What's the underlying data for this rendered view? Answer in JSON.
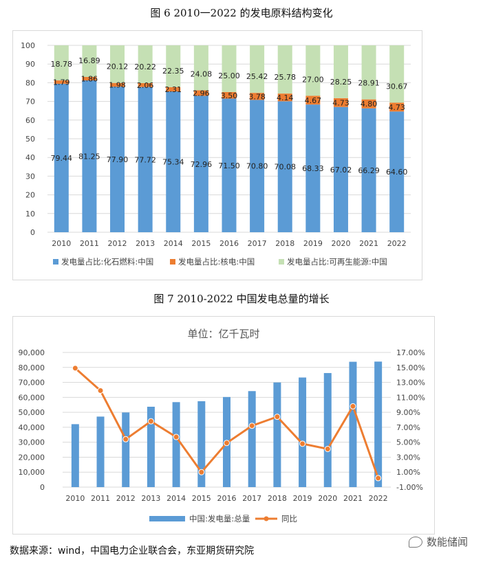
{
  "figure1": {
    "caption": "图 6 2010一2022 的发电原料结构变化"
  },
  "figure2": {
    "caption": "图 7  2010-2022 中国发电总量的增长"
  },
  "source": "数据来源：wind，中国电力企业联合会，东亚期货研究院",
  "watermark": "数能储闻",
  "colors": {
    "fossil": "#5b9bd5",
    "nuclear": "#ed7d31",
    "renewable": "#c5e0b4",
    "total_bar": "#5b9bd5",
    "yoy_line": "#ed7d31"
  },
  "chart_data": [
    {
      "type": "bar",
      "stacked": true,
      "categories": [
        "2010",
        "2011",
        "2012",
        "2013",
        "2014",
        "2015",
        "2016",
        "2017",
        "2018",
        "2019",
        "2020",
        "2021",
        "2022"
      ],
      "series": [
        {
          "name": "发电量占比:化石燃料:中国",
          "values": [
            79.44,
            81.25,
            77.9,
            77.72,
            75.34,
            72.96,
            71.5,
            70.8,
            70.08,
            68.33,
            67.02,
            66.29,
            64.6
          ]
        },
        {
          "name": "发电量占比:核电:中国",
          "values": [
            1.79,
            1.86,
            1.98,
            2.06,
            2.31,
            2.96,
            3.5,
            3.78,
            4.14,
            4.67,
            4.73,
            4.8,
            4.73
          ]
        },
        {
          "name": "发电量占比:可再生能源:中国",
          "values": [
            18.78,
            16.89,
            20.12,
            20.22,
            22.35,
            24.08,
            25.0,
            25.42,
            25.78,
            27.0,
            28.25,
            28.91,
            30.67
          ]
        }
      ],
      "labels": {
        "fossil": [
          "79.44",
          "81.25",
          "77.90",
          "77.72",
          "75.34",
          "72.96",
          "71.50",
          "70.80",
          "70.08",
          "68.33",
          "67.02",
          "66.29",
          "64.60"
        ],
        "nuclear": [
          "1.79",
          "1.86",
          "1.98",
          "2.06",
          "2.31",
          "2.96",
          "3.50",
          "3.78",
          "4.14",
          "4.67",
          "4.73",
          "4.80",
          "4.73"
        ],
        "renewable": [
          "18.78",
          "16.89",
          "20.12",
          "20.22",
          "22.35",
          "24.08",
          "25.00",
          "25.42",
          "25.78",
          "27.00",
          "28.25",
          "28.91",
          "30.67"
        ]
      },
      "ylim": [
        0,
        100
      ],
      "yticks": [
        "0",
        "10",
        "20",
        "30",
        "40",
        "50",
        "60",
        "70",
        "80",
        "90",
        "100"
      ],
      "grid": true,
      "legend_position": "bottom"
    },
    {
      "type": "bar",
      "title": "单位：亿千瓦时",
      "categories": [
        "2010",
        "2011",
        "2012",
        "2013",
        "2014",
        "2015",
        "2016",
        "2017",
        "2018",
        "2019",
        "2020",
        "2021",
        "2022"
      ],
      "series": [
        {
          "name": "中国:发电量:总量",
          "type": "bar",
          "axis": "left",
          "values": [
            42072,
            47130,
            49876,
            53721,
            56801,
            57400,
            60228,
            64171,
            69940,
            73253,
            76236,
            83768,
            83886
          ]
        },
        {
          "name": "同比",
          "type": "line",
          "axis": "right",
          "values": [
            14.9,
            11.9,
            5.4,
            7.8,
            5.7,
            1.0,
            4.9,
            7.2,
            8.4,
            4.8,
            4.1,
            9.8,
            0.2
          ]
        }
      ],
      "ylim_left": [
        0,
        90000
      ],
      "yticks_left": [
        "0",
        "10,000",
        "20,000",
        "30,000",
        "40,000",
        "50,000",
        "60,000",
        "70,000",
        "80,000",
        "90,000"
      ],
      "ylim_right": [
        -1,
        17
      ],
      "yticks_right": [
        "-1.00%",
        "1.00%",
        "3.00%",
        "5.00%",
        "7.00%",
        "9.00%",
        "11.00%",
        "13.00%",
        "15.00%",
        "17.00%"
      ],
      "grid": true,
      "legend_position": "bottom"
    }
  ]
}
